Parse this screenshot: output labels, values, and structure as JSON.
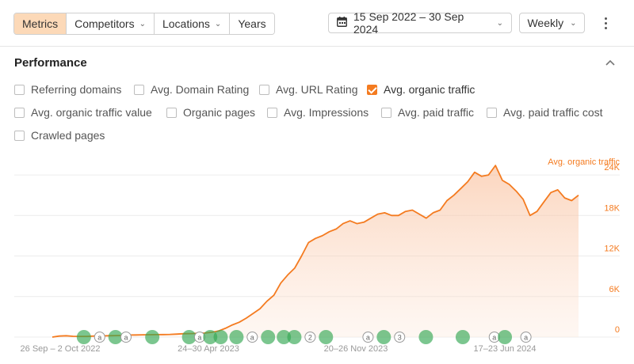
{
  "toolbar": {
    "tabs": [
      {
        "label": "Metrics",
        "active": true,
        "dropdown": false
      },
      {
        "label": "Competitors",
        "active": false,
        "dropdown": true
      },
      {
        "label": "Locations",
        "active": false,
        "dropdown": true
      },
      {
        "label": "Years",
        "active": false,
        "dropdown": false
      }
    ],
    "date_range": "15 Sep 2022 – 30 Sep 2024",
    "interval": "Weekly",
    "date_icon": "calendar-icon",
    "more_icon": "kebab-menu-icon"
  },
  "panel": {
    "title": "Performance",
    "collapse_icon": "chevron-up-icon",
    "checkboxes": [
      {
        "label": "Referring domains",
        "checked": false
      },
      {
        "label": "Avg. Domain Rating",
        "checked": false
      },
      {
        "label": "Avg. URL Rating",
        "checked": false
      },
      {
        "label": "Avg. organic traffic",
        "checked": true
      },
      {
        "label": "Avg. organic traffic value",
        "checked": false
      },
      {
        "label": "Organic pages",
        "checked": false
      },
      {
        "label": "Avg. Impressions",
        "checked": false
      },
      {
        "label": "Avg. paid traffic",
        "checked": false
      },
      {
        "label": "Avg. paid traffic cost",
        "checked": false
      },
      {
        "label": "Crawled pages",
        "checked": false
      }
    ]
  },
  "colors": {
    "accent": "#f47b20",
    "checkbox_on": "#f47b20",
    "marker_green": "#34a853",
    "active_tab": "#fcd9b8"
  },
  "chart_data": {
    "type": "area",
    "series": [
      {
        "name": "Avg. organic traffic",
        "values": [
          0,
          150,
          200,
          120,
          100,
          100,
          150,
          180,
          200,
          220,
          250,
          300,
          320,
          340,
          350,
          360,
          380,
          400,
          450,
          500,
          520,
          560,
          600,
          700,
          900,
          1300,
          1800,
          2200,
          2800,
          3500,
          4200,
          5300,
          6200,
          8000,
          9200,
          10200,
          12000,
          14000,
          14600,
          15000,
          15600,
          16000,
          16800,
          17200,
          16800,
          17000,
          17600,
          18200,
          18400,
          18000,
          18000,
          18600,
          18800,
          18200,
          17600,
          18400,
          18800,
          20200,
          21000,
          22000,
          23000,
          24400,
          23800,
          24000,
          25400,
          23200,
          22600,
          21600,
          20400,
          18000,
          18600,
          20000,
          21400,
          21800,
          20600,
          20200,
          21000
        ]
      }
    ],
    "x_tick_labels": [
      "26 Sep – 2 Oct 2022",
      "24–30 Apr 2023",
      "20–26 Nov 2023",
      "17–23 Jun 2024"
    ],
    "y_ticks": [
      0,
      6000,
      12000,
      18000,
      24000
    ],
    "y_tick_labels": [
      "0",
      "6K",
      "12K",
      "18K",
      "24K"
    ],
    "ylim": [
      0,
      26000
    ],
    "ylabel": "Avg. organic traffic",
    "grid": true,
    "annotations": [
      {
        "x": 0.06,
        "type": "g"
      },
      {
        "x": 0.09,
        "type": "a"
      },
      {
        "x": 0.12,
        "type": "g"
      },
      {
        "x": 0.14,
        "type": "a"
      },
      {
        "x": 0.19,
        "type": "g"
      },
      {
        "x": 0.26,
        "type": "g"
      },
      {
        "x": 0.28,
        "type": "a"
      },
      {
        "x": 0.3,
        "type": "g"
      },
      {
        "x": 0.32,
        "type": "g"
      },
      {
        "x": 0.35,
        "type": "g"
      },
      {
        "x": 0.38,
        "type": "a"
      },
      {
        "x": 0.41,
        "type": "g"
      },
      {
        "x": 0.44,
        "type": "g"
      },
      {
        "x": 0.46,
        "type": "g"
      },
      {
        "x": 0.49,
        "type": "2"
      },
      {
        "x": 0.52,
        "type": "g"
      },
      {
        "x": 0.6,
        "type": "a"
      },
      {
        "x": 0.63,
        "type": "g"
      },
      {
        "x": 0.66,
        "type": "3"
      },
      {
        "x": 0.71,
        "type": "g"
      },
      {
        "x": 0.78,
        "type": "g"
      },
      {
        "x": 0.84,
        "type": "a"
      },
      {
        "x": 0.86,
        "type": "g"
      },
      {
        "x": 0.9,
        "type": "a"
      }
    ]
  }
}
